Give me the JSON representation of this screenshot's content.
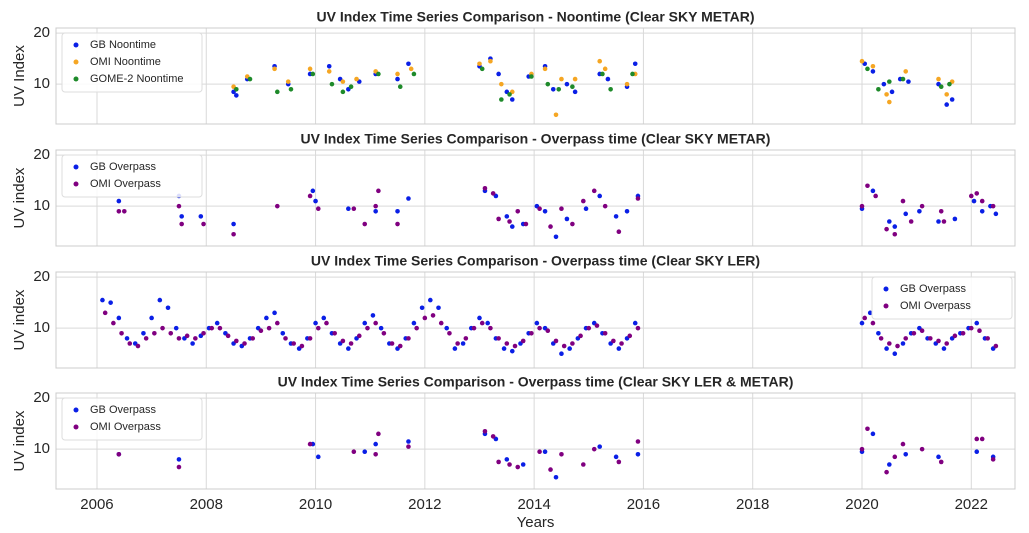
{
  "chart_data": [
    {
      "type": "scatter",
      "title": "UV Index Time Series Comparison - Noontime (Clear SKY METAR)",
      "ylabel": "UV Index",
      "xlim": [
        2005.25,
        2022.8
      ],
      "xticks": [
        2006,
        2008,
        2010,
        2012,
        2014,
        2016,
        2018,
        2020,
        2022
      ],
      "ylim": [
        2.2,
        21
      ],
      "yticks": [
        10,
        20
      ],
      "grid": true,
      "legend": "upper left",
      "series": [
        {
          "name": "GB Noontime",
          "color": "#0a1fe6",
          "x": [
            2008.5,
            2008.55,
            2008.75,
            2009.25,
            2009.5,
            2009.9,
            2010.25,
            2010.45,
            2010.6,
            2010.8,
            2011.1,
            2011.5,
            2011.7,
            2013.0,
            2013.2,
            2013.35,
            2013.5,
            2013.6,
            2013.9,
            2014.2,
            2014.35,
            2014.6,
            2014.75,
            2015.2,
            2015.35,
            2015.7,
            2015.85,
            2020.05,
            2020.2,
            2020.4,
            2020.55,
            2020.7,
            2020.85,
            2021.4,
            2021.55,
            2021.65
          ],
          "values": [
            8.5,
            7.8,
            11,
            13.5,
            10,
            12,
            13.5,
            11,
            9,
            10.5,
            12,
            11,
            14,
            13.5,
            15,
            12,
            8.5,
            7,
            11.5,
            13.5,
            9,
            10,
            8.5,
            12,
            11,
            9.5,
            14,
            14,
            12.5,
            10,
            8.5,
            11,
            10.5,
            10,
            6,
            7
          ]
        },
        {
          "name": "OMI Noontime",
          "color": "#f5a623",
          "x": [
            2008.5,
            2008.75,
            2009.25,
            2009.5,
            2009.9,
            2010.25,
            2010.5,
            2010.75,
            2011.1,
            2011.5,
            2011.75,
            2013.0,
            2013.2,
            2013.4,
            2013.6,
            2013.95,
            2014.2,
            2014.4,
            2014.5,
            2014.75,
            2015.2,
            2015.3,
            2015.7,
            2015.85,
            2020.0,
            2020.2,
            2020.45,
            2020.5,
            2020.8,
            2021.4,
            2021.55,
            2021.65
          ],
          "values": [
            9.5,
            11.5,
            13,
            10.5,
            13,
            12.5,
            10.5,
            11,
            12.5,
            12,
            13,
            14,
            14.5,
            10,
            8.5,
            12,
            13,
            4,
            11,
            11,
            14.5,
            13,
            10,
            12,
            14.5,
            13.5,
            8,
            6.5,
            12.5,
            11,
            8,
            10.5
          ]
        },
        {
          "name": "GOME-2 Noontime",
          "color": "#1e8a2a",
          "x": [
            2008.55,
            2008.8,
            2009.3,
            2009.55,
            2009.95,
            2010.3,
            2010.5,
            2010.65,
            2011.15,
            2011.55,
            2011.8,
            2013.05,
            2013.4,
            2013.55,
            2013.95,
            2014.25,
            2014.45,
            2014.7,
            2015.25,
            2015.4,
            2015.8,
            2020.1,
            2020.3,
            2020.5,
            2020.75,
            2021.45,
            2021.6
          ],
          "values": [
            9,
            11,
            8.5,
            9,
            12,
            10,
            8.5,
            9.5,
            12,
            9.5,
            12,
            13,
            7,
            8,
            11.5,
            10,
            9,
            9.5,
            12,
            9,
            12,
            13,
            9,
            10.5,
            11,
            9.5,
            10
          ]
        }
      ]
    },
    {
      "type": "scatter",
      "title": "UV Index Time Series Comparison - Overpass time (Clear SKY METAR)",
      "ylabel": "UV index",
      "xlim": [
        2005.25,
        2022.8
      ],
      "xticks": [
        2006,
        2008,
        2010,
        2012,
        2014,
        2016,
        2018,
        2020,
        2022
      ],
      "ylim": [
        2.2,
        21
      ],
      "yticks": [
        10,
        20
      ],
      "grid": true,
      "legend": "upper left",
      "series": [
        {
          "name": "GB Overpass",
          "color": "#0a1fe6",
          "x": [
            2006.4,
            2007.5,
            2007.55,
            2007.9,
            2008.5,
            2009.95,
            2010.0,
            2010.6,
            2011.1,
            2011.5,
            2011.7,
            2013.1,
            2013.3,
            2013.5,
            2013.6,
            2013.8,
            2014.05,
            2014.2,
            2014.4,
            2014.6,
            2014.95,
            2015.2,
            2015.5,
            2015.7,
            2015.9,
            2020.0,
            2020.2,
            2020.5,
            2020.6,
            2020.8,
            2021.05,
            2021.4,
            2021.7,
            2022.05,
            2022.2,
            2022.35,
            2022.45
          ],
          "values": [
            11,
            12,
            8,
            8,
            6.5,
            13,
            11,
            9.5,
            9,
            9,
            11.5,
            13,
            12,
            8,
            6,
            6.5,
            10,
            9,
            4,
            7.5,
            9.5,
            12,
            8,
            9,
            12,
            9.5,
            13,
            7,
            6,
            8.5,
            9,
            7,
            7.5,
            11,
            9,
            10,
            8.5
          ]
        },
        {
          "name": "OMI Overpass",
          "color": "#800080",
          "x": [
            2006.4,
            2006.5,
            2007.5,
            2007.55,
            2007.95,
            2008.5,
            2009.3,
            2009.9,
            2010.05,
            2010.7,
            2010.9,
            2011.1,
            2011.15,
            2011.5,
            2013.1,
            2013.25,
            2013.35,
            2013.55,
            2013.7,
            2013.85,
            2014.1,
            2014.3,
            2014.5,
            2014.7,
            2014.9,
            2015.1,
            2015.3,
            2015.55,
            2015.9,
            2020.0,
            2020.1,
            2020.25,
            2020.45,
            2020.6,
            2020.75,
            2020.9,
            2021.1,
            2021.45,
            2021.5,
            2022.0,
            2022.1,
            2022.2,
            2022.4
          ],
          "values": [
            9,
            9,
            10,
            6.5,
            6.5,
            4.5,
            10,
            12,
            9.5,
            9.5,
            6.5,
            10,
            13,
            6.5,
            13.5,
            12.5,
            7.5,
            7,
            9,
            6.5,
            9.5,
            6,
            9.5,
            6.5,
            11,
            13,
            10,
            5,
            11.5,
            10,
            14,
            12,
            5.5,
            4.5,
            11,
            7,
            10,
            9,
            7,
            12,
            12.5,
            11,
            10
          ]
        }
      ]
    },
    {
      "type": "scatter",
      "title": "UV Index Time Series Comparison - Overpass time (Clear SKY LER)",
      "ylabel": "UV index",
      "xlim": [
        2005.25,
        2022.8
      ],
      "xticks": [
        2006,
        2008,
        2010,
        2012,
        2014,
        2016,
        2018,
        2020,
        2022
      ],
      "ylim": [
        2.2,
        21
      ],
      "yticks": [
        10,
        20
      ],
      "grid": true,
      "legend": "upper right",
      "series": [
        {
          "name": "GB Overpass",
          "color": "#0a1fe6",
          "x": [
            2006.1,
            2006.25,
            2006.4,
            2006.55,
            2006.7,
            2006.85,
            2007.0,
            2007.15,
            2007.3,
            2007.45,
            2007.6,
            2007.75,
            2007.9,
            2008.05,
            2008.2,
            2008.35,
            2008.5,
            2008.65,
            2008.8,
            2008.95,
            2009.1,
            2009.25,
            2009.4,
            2009.55,
            2009.7,
            2009.85,
            2010.0,
            2010.15,
            2010.3,
            2010.45,
            2010.6,
            2010.75,
            2010.9,
            2011.05,
            2011.2,
            2011.35,
            2011.5,
            2011.65,
            2011.8,
            2011.95,
            2012.1,
            2012.25,
            2012.4,
            2012.55,
            2012.7,
            2012.85,
            2013.0,
            2013.15,
            2013.3,
            2013.45,
            2013.6,
            2013.75,
            2013.9,
            2014.05,
            2014.2,
            2014.35,
            2014.5,
            2014.65,
            2014.8,
            2014.95,
            2015.1,
            2015.25,
            2015.4,
            2015.55,
            2015.7,
            2015.85,
            2020.0,
            2020.15,
            2020.3,
            2020.45,
            2020.6,
            2020.75,
            2020.9,
            2021.05,
            2021.2,
            2021.35,
            2021.5,
            2021.65,
            2021.8,
            2021.95,
            2022.1,
            2022.25,
            2022.4
          ],
          "values": [
            15.5,
            15,
            12,
            8,
            7,
            9,
            12,
            15.5,
            14,
            10,
            8,
            7,
            8.5,
            10,
            11,
            9,
            7,
            6.5,
            8,
            10,
            12,
            13,
            9,
            7,
            6,
            8,
            11,
            12,
            9,
            7,
            6,
            8,
            11,
            12.5,
            10,
            7,
            6,
            8,
            11,
            14,
            15.5,
            14,
            10,
            6,
            7,
            10,
            12,
            11,
            8,
            6,
            5.5,
            7,
            9,
            11,
            10,
            7,
            5,
            6,
            8,
            10,
            11,
            9,
            7,
            6,
            8,
            11,
            11,
            13,
            9,
            6,
            5,
            7,
            9,
            10,
            8,
            7,
            6,
            8,
            9,
            10,
            11,
            8,
            6
          ]
        },
        {
          "name": "OMI Overpass",
          "color": "#800080",
          "x": [
            2006.15,
            2006.3,
            2006.45,
            2006.6,
            2006.75,
            2006.9,
            2007.05,
            2007.2,
            2007.35,
            2007.5,
            2007.65,
            2007.8,
            2007.95,
            2008.1,
            2008.25,
            2008.4,
            2008.55,
            2008.7,
            2008.85,
            2009.0,
            2009.15,
            2009.3,
            2009.45,
            2009.6,
            2009.75,
            2009.9,
            2010.05,
            2010.2,
            2010.35,
            2010.5,
            2010.65,
            2010.8,
            2010.95,
            2011.1,
            2011.25,
            2011.4,
            2011.55,
            2011.7,
            2011.85,
            2012.0,
            2012.15,
            2012.3,
            2012.45,
            2012.6,
            2012.75,
            2012.9,
            2013.05,
            2013.2,
            2013.35,
            2013.5,
            2013.65,
            2013.8,
            2013.95,
            2014.1,
            2014.25,
            2014.4,
            2014.55,
            2014.7,
            2014.85,
            2015.0,
            2015.15,
            2015.3,
            2015.45,
            2015.6,
            2015.75,
            2015.9,
            2020.05,
            2020.2,
            2020.35,
            2020.5,
            2020.65,
            2020.8,
            2020.95,
            2021.1,
            2021.25,
            2021.4,
            2021.55,
            2021.7,
            2021.85,
            2022.0,
            2022.15,
            2022.3,
            2022.45
          ],
          "values": [
            13,
            11,
            9,
            7,
            6.5,
            8,
            9,
            10,
            9,
            8,
            8.5,
            8,
            9,
            10,
            10,
            8.5,
            7.5,
            7,
            8,
            9.5,
            10,
            11,
            8,
            7,
            6.5,
            8,
            10,
            11,
            9,
            7.5,
            7,
            8.5,
            10,
            11,
            9,
            7,
            6.5,
            8,
            10,
            12,
            12.5,
            11,
            9,
            7,
            8,
            10,
            11,
            10,
            8,
            7,
            6.5,
            7.5,
            9,
            10,
            9.5,
            7.5,
            6.5,
            7,
            8.5,
            10,
            10.5,
            9,
            7.5,
            7,
            8.5,
            10,
            12,
            11,
            8,
            7,
            6.5,
            8,
            9,
            9.5,
            8,
            7.5,
            7,
            8.5,
            9,
            10,
            9.5,
            8,
            6.5
          ]
        }
      ]
    },
    {
      "type": "scatter",
      "title": "UV Index Time Series Comparison - Overpass time (Clear SKY LER & METAR)",
      "ylabel": "UV index",
      "xlabel": "Years",
      "xlim": [
        2005.25,
        2022.8
      ],
      "xticks": [
        2006,
        2008,
        2010,
        2012,
        2014,
        2016,
        2018,
        2020,
        2022
      ],
      "ylim": [
        2.2,
        21
      ],
      "yticks": [
        10,
        20
      ],
      "grid": true,
      "legend": "upper left",
      "series": [
        {
          "name": "GB Overpass",
          "color": "#0a1fe6",
          "x": [
            2006.4,
            2007.5,
            2009.95,
            2010.05,
            2010.9,
            2011.1,
            2011.7,
            2013.1,
            2013.3,
            2013.5,
            2013.8,
            2014.2,
            2014.4,
            2015.2,
            2015.5,
            2015.9,
            2020.0,
            2020.2,
            2020.5,
            2020.8,
            2021.4,
            2022.1,
            2022.4
          ],
          "values": [
            9,
            8,
            11,
            8.5,
            9.5,
            11,
            11.5,
            13,
            12,
            8,
            7,
            9.5,
            4.5,
            10.5,
            8.5,
            9,
            9.5,
            13,
            7,
            9,
            8.5,
            9.5,
            8.5
          ]
        },
        {
          "name": "OMI Overpass",
          "color": "#800080",
          "x": [
            2006.4,
            2007.5,
            2009.9,
            2010.7,
            2011.1,
            2011.15,
            2011.7,
            2013.1,
            2013.25,
            2013.35,
            2013.55,
            2013.7,
            2014.1,
            2014.3,
            2014.5,
            2014.9,
            2015.1,
            2015.55,
            2015.9,
            2020.0,
            2020.1,
            2020.45,
            2020.6,
            2020.75,
            2021.1,
            2021.45,
            2022.1,
            2022.2,
            2022.4
          ],
          "values": [
            9,
            6.5,
            11,
            9.5,
            9,
            13,
            10.5,
            13.5,
            12.5,
            7.5,
            7,
            6.5,
            9.5,
            6,
            9,
            7,
            10,
            7.5,
            11.5,
            10,
            14,
            5.5,
            8.5,
            11,
            10,
            7.5,
            12,
            12,
            8
          ]
        }
      ]
    }
  ]
}
